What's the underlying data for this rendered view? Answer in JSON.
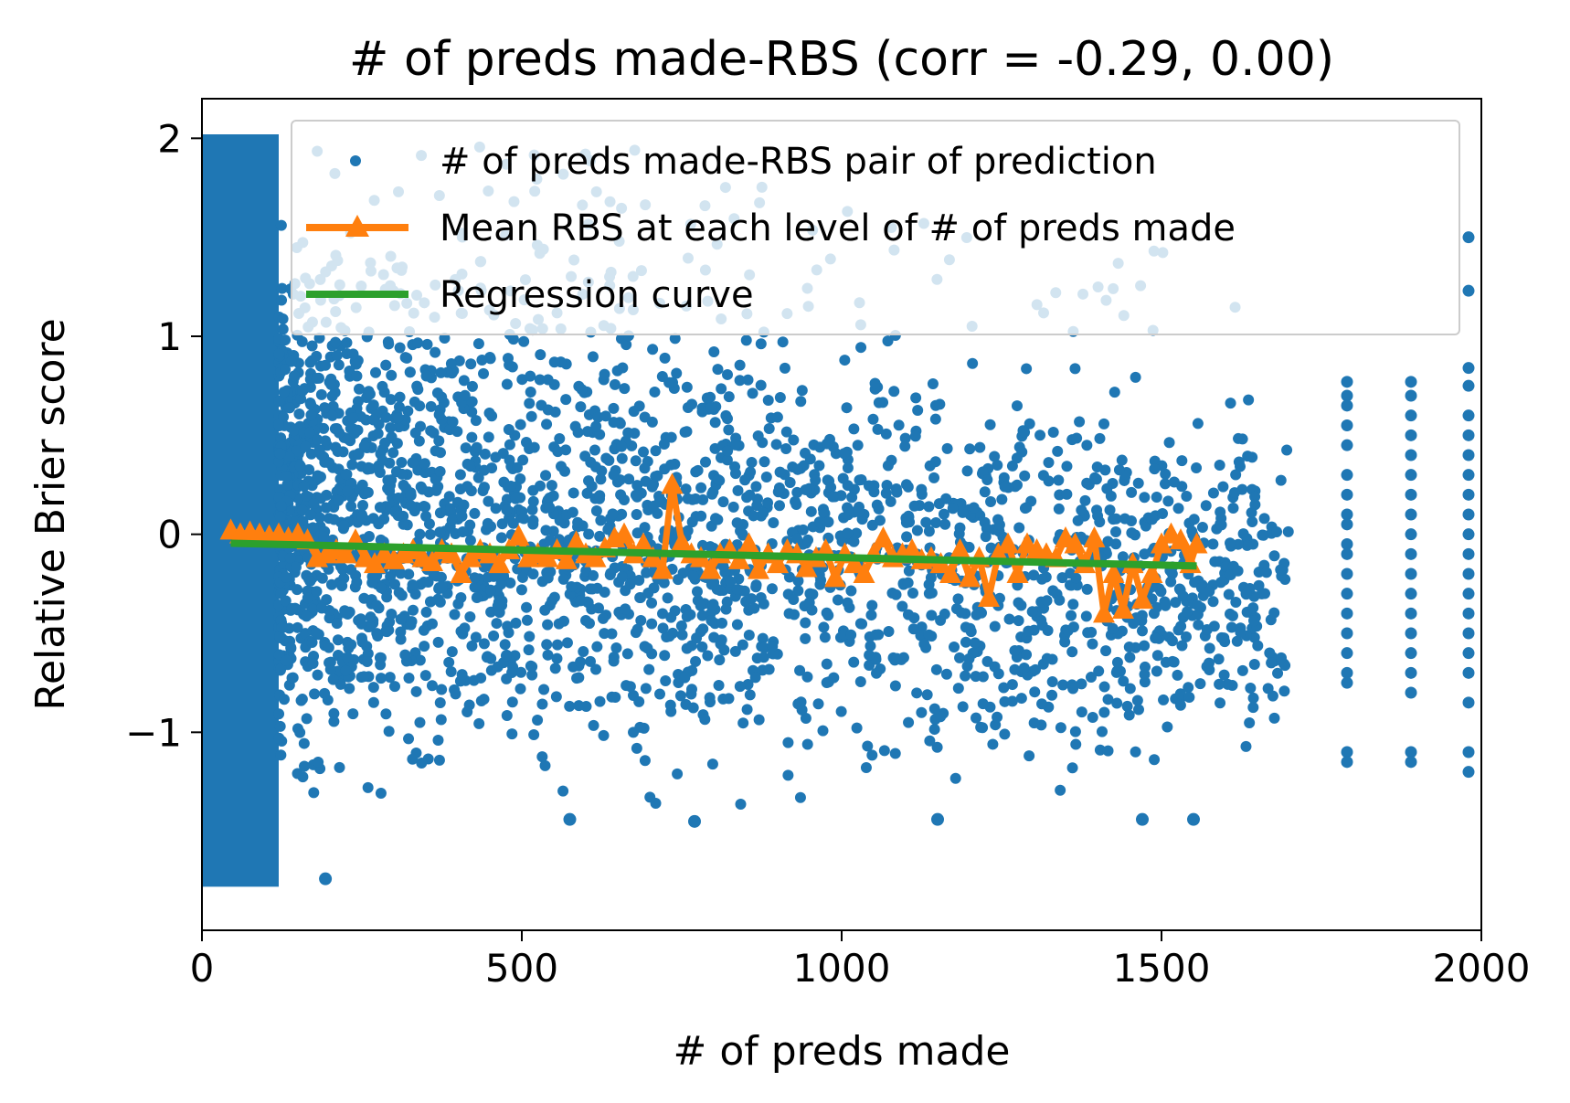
{
  "chart_data": {
    "type": "scatter",
    "title": "# of preds made-RBS (corr = -0.29, 0.00)",
    "xlabel": "# of preds made",
    "ylabel": "Relative Brier score",
    "xlim": [
      0,
      2000
    ],
    "ylim": [
      -2.0,
      2.2
    ],
    "xticks": [
      0,
      500,
      1000,
      1500,
      2000
    ],
    "xtick_labels": [
      "0",
      "500",
      "1000",
      "1500",
      "2000"
    ],
    "yticks": [
      -1,
      0,
      1,
      2
    ],
    "ytick_labels": [
      "−1",
      "0",
      "1",
      "2"
    ],
    "grid": false,
    "legend_position": "top-right",
    "series": [
      {
        "name": "# of preds made-RBS pair of prediction",
        "kind": "scatter",
        "color": "#1f77b4",
        "dense_band": {
          "x_range": [
            0,
            120
          ],
          "y_range": [
            -1.78,
            2.02
          ]
        },
        "columns": [
          {
            "x": 1790,
            "y_values": [
              0.77,
              0.7,
              0.65,
              0.55,
              0.45,
              0.3,
              0.2,
              0.1,
              0.05,
              -0.05,
              -0.1,
              -0.2,
              -0.3,
              -0.4,
              -0.5,
              -0.6,
              -0.7,
              -0.75,
              -1.1,
              -1.15
            ]
          },
          {
            "x": 1890,
            "y_values": [
              0.77,
              0.7,
              0.6,
              0.5,
              0.4,
              0.3,
              0.2,
              0.1,
              0.0,
              -0.1,
              -0.2,
              -0.3,
              -0.4,
              -0.5,
              -0.6,
              -0.7,
              -0.8,
              -1.1,
              -1.15
            ]
          },
          {
            "x": 1980,
            "y_values": [
              1.5,
              1.23,
              0.84,
              0.75,
              0.6,
              0.5,
              0.4,
              0.3,
              0.2,
              0.1,
              0.0,
              -0.1,
              -0.2,
              -0.3,
              -0.4,
              -0.5,
              -0.6,
              -0.7,
              -0.85,
              -1.1,
              -1.2
            ]
          }
        ],
        "outliers": [
          {
            "x": 193,
            "y": -1.74
          },
          {
            "x": 575,
            "y": -1.44
          },
          {
            "x": 770,
            "y": -1.45
          },
          {
            "x": 1150,
            "y": -1.44
          },
          {
            "x": 1470,
            "y": -1.44
          },
          {
            "x": 1550,
            "y": -1.44
          }
        ]
      },
      {
        "name": "Mean RBS at each level of # of preds made",
        "kind": "line-marker",
        "color": "#ff7f0e",
        "x": [
          45,
          60,
          75,
          90,
          105,
          120,
          135,
          150,
          165,
          180,
          195,
          210,
          225,
          240,
          255,
          270,
          285,
          300,
          315,
          330,
          345,
          360,
          375,
          390,
          405,
          420,
          435,
          450,
          465,
          480,
          495,
          510,
          525,
          540,
          555,
          570,
          585,
          600,
          615,
          630,
          645,
          660,
          675,
          690,
          705,
          720,
          735,
          750,
          765,
          780,
          795,
          810,
          825,
          840,
          855,
          870,
          885,
          900,
          915,
          930,
          945,
          960,
          975,
          990,
          1005,
          1020,
          1035,
          1050,
          1065,
          1080,
          1095,
          1110,
          1125,
          1140,
          1155,
          1170,
          1185,
          1200,
          1215,
          1230,
          1245,
          1260,
          1275,
          1290,
          1305,
          1320,
          1335,
          1350,
          1365,
          1380,
          1395,
          1410,
          1425,
          1440,
          1455,
          1470,
          1485,
          1500,
          1515,
          1530,
          1545,
          1555
        ],
        "y": [
          0.02,
          0.0,
          0.01,
          0.0,
          -0.01,
          0.0,
          -0.02,
          0.0,
          -0.03,
          -0.12,
          -0.1,
          -0.08,
          -0.1,
          -0.03,
          -0.12,
          -0.15,
          -0.1,
          -0.13,
          -0.1,
          -0.08,
          -0.12,
          -0.14,
          -0.08,
          -0.1,
          -0.2,
          -0.12,
          -0.08,
          -0.1,
          -0.15,
          -0.08,
          -0.01,
          -0.12,
          -0.1,
          -0.12,
          -0.08,
          -0.13,
          -0.04,
          -0.1,
          -0.12,
          -0.07,
          -0.02,
          0.0,
          -0.1,
          -0.05,
          -0.12,
          -0.18,
          0.25,
          -0.04,
          -0.1,
          -0.12,
          -0.18,
          -0.1,
          -0.08,
          -0.13,
          -0.05,
          -0.18,
          -0.1,
          -0.15,
          -0.08,
          -0.1,
          -0.17,
          -0.12,
          -0.08,
          -0.22,
          -0.1,
          -0.15,
          -0.2,
          -0.1,
          -0.02,
          -0.12,
          -0.1,
          -0.08,
          -0.13,
          -0.12,
          -0.15,
          -0.2,
          -0.08,
          -0.22,
          -0.12,
          -0.32,
          -0.1,
          -0.05,
          -0.2,
          -0.05,
          -0.08,
          -0.1,
          -0.12,
          -0.02,
          -0.05,
          -0.15,
          -0.02,
          -0.4,
          -0.2,
          -0.38,
          -0.15,
          -0.33,
          -0.2,
          -0.05,
          0.0,
          -0.03,
          -0.15,
          -0.05
        ]
      },
      {
        "name": "Regression curve",
        "kind": "line",
        "color": "#2ca02c",
        "x": [
          45,
          1555
        ],
        "y": [
          -0.045,
          -0.16
        ]
      }
    ]
  }
}
